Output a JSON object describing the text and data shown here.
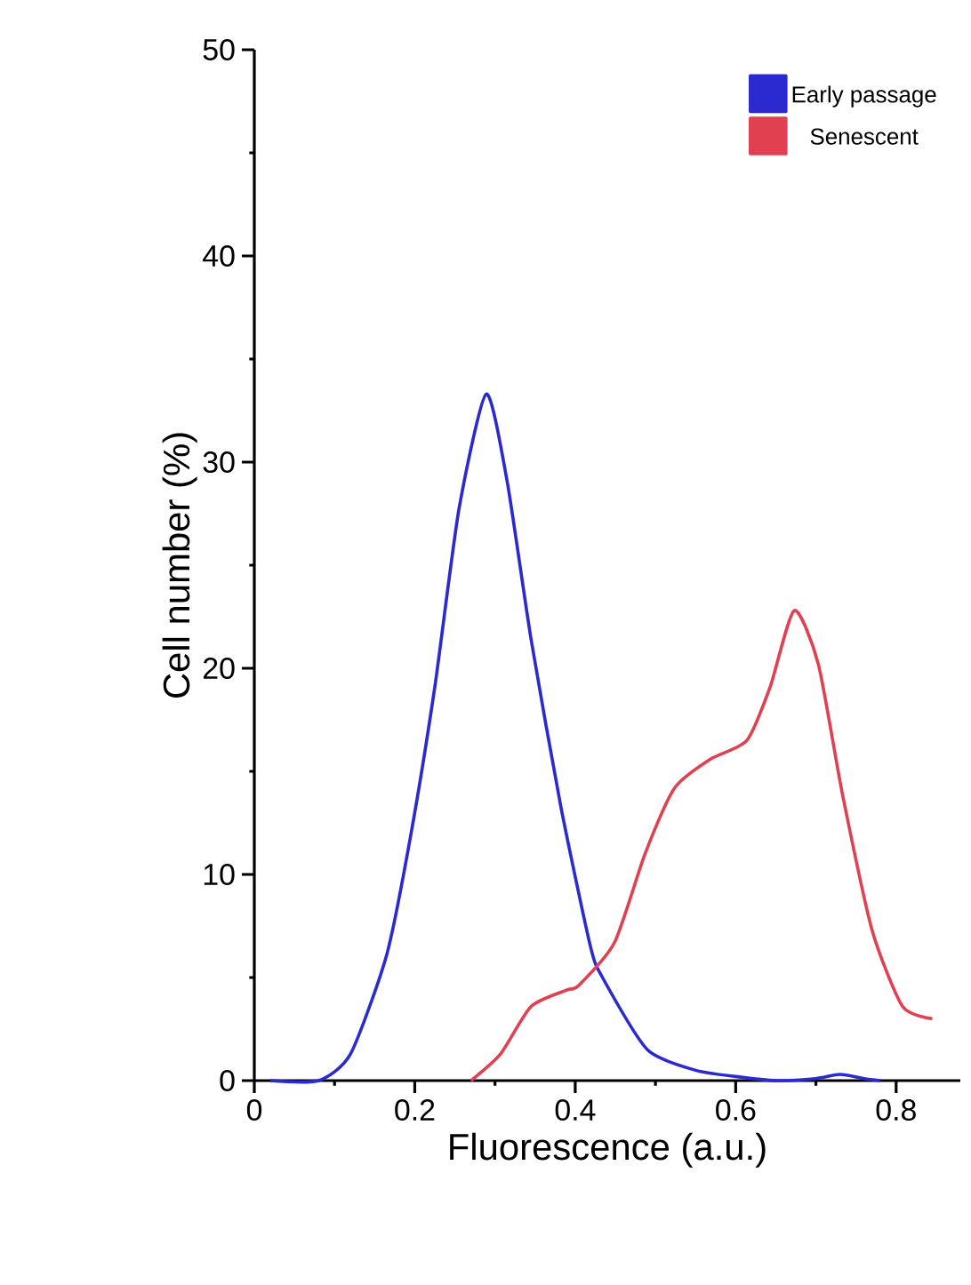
{
  "chart_data": {
    "type": "line",
    "xlabel": "Fluorescence (a.u.)",
    "ylabel": "Cell number (%)",
    "xlim": [
      0,
      0.88
    ],
    "ylim": [
      0,
      50
    ],
    "xticks": [
      0,
      0.2,
      0.4,
      0.6,
      0.8
    ],
    "yticks": [
      0,
      10,
      20,
      30,
      40,
      50
    ],
    "legend": "top right",
    "grid": false,
    "marker": "none",
    "line_style": "solid",
    "series": [
      {
        "name": "Early passage",
        "color": "#2a2ad0",
        "x": [
          0.02,
          0.08,
          0.12,
          0.165,
          0.195,
          0.225,
          0.255,
          0.289,
          0.315,
          0.345,
          0.382,
          0.419,
          0.434,
          0.49,
          0.55,
          0.6,
          0.65,
          0.7,
          0.73,
          0.76,
          0.78
        ],
        "values": [
          0,
          0,
          1.3,
          6.1,
          11.9,
          19.1,
          27.7,
          33.3,
          29.1,
          21.4,
          13.3,
          6.5,
          5.0,
          1.5,
          0.5,
          0.2,
          0,
          0.1,
          0.3,
          0.1,
          0
        ]
      },
      {
        "name": "Senescent",
        "color": "#e04050",
        "x": [
          0.27,
          0.307,
          0.345,
          0.39,
          0.404,
          0.449,
          0.487,
          0.524,
          0.569,
          0.614,
          0.643,
          0.673,
          0.703,
          0.733,
          0.77,
          0.808,
          0.845
        ],
        "values": [
          0,
          1.3,
          3.6,
          4.4,
          4.6,
          6.7,
          11.0,
          14.2,
          15.6,
          16.5,
          19.1,
          22.8,
          20.2,
          13.9,
          7.3,
          3.6,
          3.0
        ]
      }
    ]
  }
}
